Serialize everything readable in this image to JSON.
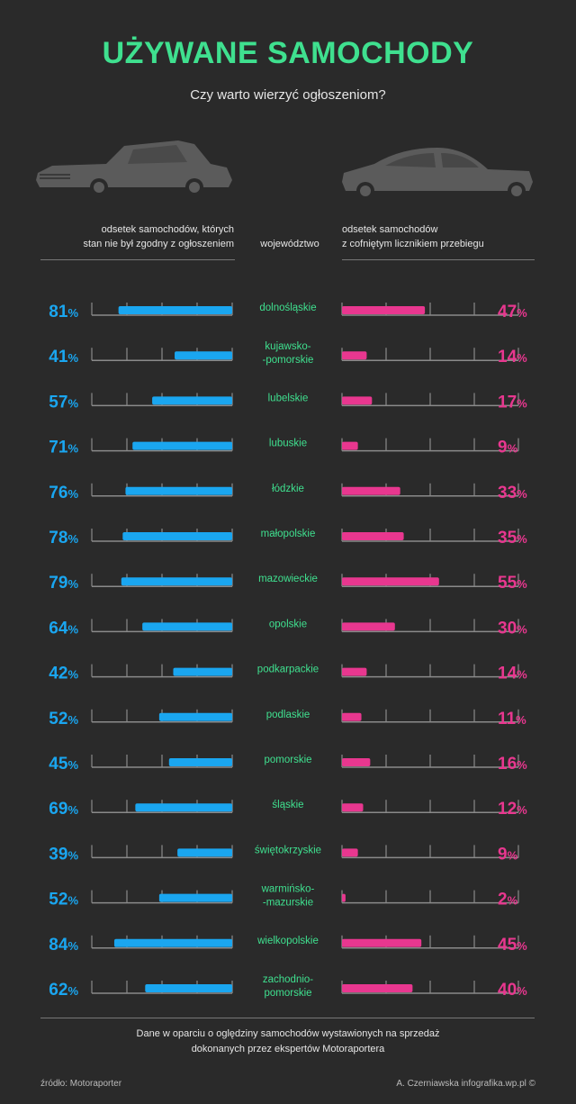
{
  "header": {
    "title": "UŻYWANE SAMOCHODY",
    "subtitle": "Czy warto wierzyć ogłoszeniom?"
  },
  "columns": {
    "left_line1": "odsetek samochodów, których",
    "left_line2": "stan nie był zgodny z ogłoszeniem",
    "middle": "województwo",
    "right_line1": "odsetek samochodów",
    "right_line2": "z cofniętym licznikiem przebiegu"
  },
  "colors": {
    "title": "#3fe08f",
    "region": "#3fe08f",
    "left_series": "#1aa6f0",
    "right_series": "#e8378f",
    "axis": "#8a8a8a"
  },
  "icons": {
    "left": "vintage-car-icon",
    "right": "sports-car-icon"
  },
  "chart_data": {
    "type": "bar",
    "categories": [
      [
        "dolnośląskie"
      ],
      [
        "kujawsko-",
        "-pomorskie"
      ],
      [
        "lubelskie"
      ],
      [
        "lubuskie"
      ],
      [
        "łódzkie"
      ],
      [
        "małopolskie"
      ],
      [
        "mazowieckie"
      ],
      [
        "opolskie"
      ],
      [
        "podkarpackie"
      ],
      [
        "podlaskie"
      ],
      [
        "pomorskie"
      ],
      [
        "śląskie"
      ],
      [
        "świętokrzyskie"
      ],
      [
        "warmińsko-",
        "-mazurskie"
      ],
      [
        "wielkopolskie"
      ],
      [
        "zachodnio-",
        "pomorskie"
      ]
    ],
    "series": [
      {
        "name": "odsetek samochodów, których stan nie był zgodny z ogłoszeniem",
        "values": [
          81,
          41,
          57,
          71,
          76,
          78,
          79,
          64,
          42,
          52,
          45,
          69,
          39,
          52,
          84,
          62
        ]
      },
      {
        "name": "odsetek samochodów z cofniętym licznikiem przebiegu",
        "values": [
          47,
          14,
          17,
          9,
          33,
          35,
          55,
          30,
          14,
          11,
          16,
          12,
          9,
          2,
          45,
          40
        ]
      }
    ],
    "unit": "%",
    "ylim": [
      0,
      100
    ]
  },
  "footer": {
    "note_line1": "Dane w oparciu o oględziny samochodów wystawionych na sprzedaż",
    "note_line2": "dokonanych przez ekspertów Motoraportera",
    "source": "źródło: Motoraporter",
    "author": "A. Czerniawska infografika.wp.pl ©"
  }
}
